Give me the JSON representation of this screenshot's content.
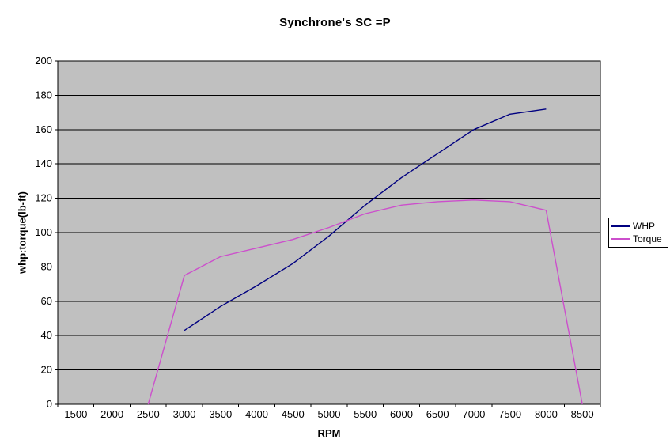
{
  "chart_data": {
    "type": "line",
    "title": "Synchrone's SC =P",
    "xlabel": "RPM",
    "ylabel": "whp:torque(lb-ft)",
    "categories": [
      1500,
      2000,
      2500,
      3000,
      3500,
      4000,
      4500,
      5000,
      5500,
      6000,
      6500,
      7000,
      7500,
      8000,
      8500
    ],
    "ylim": [
      0,
      200
    ],
    "y_tick_step": 20,
    "grid": "horizontal",
    "legend_position": "right",
    "colors": {
      "plot_bg": "#c0c0c0",
      "gridline": "#000000",
      "axis": "#000000",
      "outer_bg": "#ffffff",
      "legend_border": "#000000"
    },
    "series": [
      {
        "name": "WHP",
        "color": "#000080",
        "values": [
          null,
          null,
          null,
          43,
          57,
          69,
          82,
          98,
          116,
          132,
          146,
          160,
          169,
          172,
          null
        ]
      },
      {
        "name": "Torque",
        "color": "#cc4fcc",
        "values": [
          null,
          null,
          0,
          75,
          86,
          91,
          96,
          103,
          111,
          116,
          118,
          119,
          118,
          113,
          0
        ]
      }
    ]
  }
}
